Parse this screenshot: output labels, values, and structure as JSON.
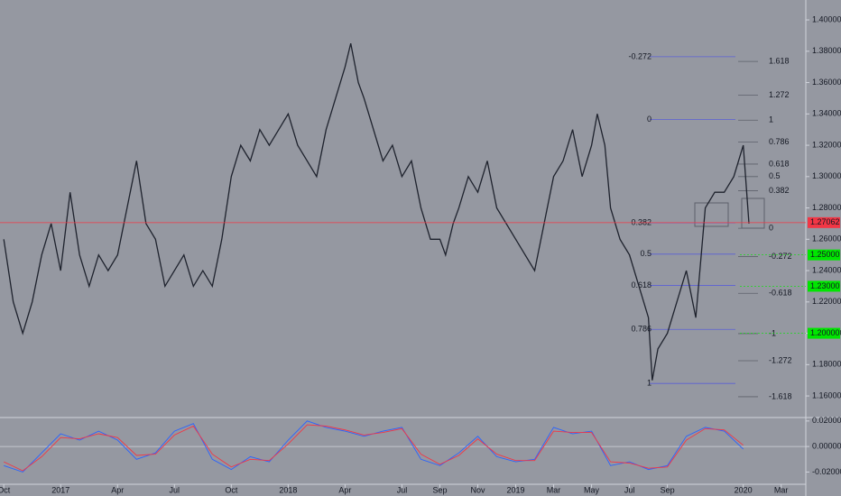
{
  "chart_data": [
    {
      "type": "line",
      "color": "#1e222d",
      "x": [
        0,
        0.5,
        1,
        1.5,
        2,
        2.5,
        3,
        3.5,
        4,
        4.5,
        5,
        5.5,
        6,
        6.5,
        7,
        7.5,
        8,
        8.5,
        9,
        9.5,
        10,
        10.5,
        11,
        11.5,
        12,
        12.5,
        13,
        13.5,
        14,
        14.5,
        15,
        15.5,
        16,
        16.5,
        17,
        17.5,
        18,
        18.3,
        18.7,
        19,
        19.5,
        20,
        20.5,
        21,
        21.5,
        22,
        22.5,
        23,
        23.3,
        23.7,
        24,
        24.5,
        25,
        25.5,
        26,
        26.5,
        27,
        27.5,
        28,
        28.5,
        29,
        29.5,
        30,
        30.5,
        31,
        31.3,
        31.7,
        32,
        32.5,
        33,
        33.5,
        34,
        34.2,
        34.5,
        35,
        35.5,
        36,
        36.5,
        37,
        37.5,
        38,
        38.5,
        39,
        39.3
      ],
      "values": [
        1.26,
        1.22,
        1.2,
        1.22,
        1.25,
        1.27,
        1.24,
        1.29,
        1.25,
        1.23,
        1.25,
        1.24,
        1.25,
        1.28,
        1.31,
        1.27,
        1.26,
        1.23,
        1.24,
        1.25,
        1.23,
        1.24,
        1.23,
        1.26,
        1.3,
        1.32,
        1.31,
        1.33,
        1.32,
        1.33,
        1.34,
        1.32,
        1.31,
        1.3,
        1.33,
        1.35,
        1.37,
        1.385,
        1.36,
        1.35,
        1.33,
        1.31,
        1.32,
        1.3,
        1.31,
        1.28,
        1.26,
        1.26,
        1.25,
        1.27,
        1.28,
        1.3,
        1.29,
        1.31,
        1.28,
        1.27,
        1.26,
        1.25,
        1.24,
        1.27,
        1.3,
        1.31,
        1.33,
        1.3,
        1.32,
        1.34,
        1.32,
        1.28,
        1.26,
        1.25,
        1.23,
        1.21,
        1.17,
        1.19,
        1.2,
        1.22,
        1.24,
        1.21,
        1.28,
        1.29,
        1.29,
        1.3,
        1.32,
        1.27
      ],
      "xlim": [
        -0.2,
        42.3
      ],
      "ylim": [
        1.1468,
        1.4127
      ],
      "yticks": [
        {
          "value": 1.16,
          "label": "1.16000"
        },
        {
          "value": 1.18,
          "label": "1.18000"
        },
        {
          "value": 1.2,
          "label": "1.20000"
        },
        {
          "value": 1.22,
          "label": "1.22000"
        },
        {
          "value": 1.24,
          "label": "1.24000"
        },
        {
          "value": 1.26,
          "label": "1.26000"
        },
        {
          "value": 1.28,
          "label": "1.28000"
        },
        {
          "value": 1.3,
          "label": "1.30000"
        },
        {
          "value": 1.32,
          "label": "1.32000"
        },
        {
          "value": 1.34,
          "label": "1.34000"
        },
        {
          "value": 1.36,
          "label": "1.36000"
        },
        {
          "value": 1.38,
          "label": "1.38000"
        },
        {
          "value": 1.4,
          "label": "1.40000"
        }
      ],
      "price_labels": [
        {
          "value": 1.27062,
          "label": "1.27062",
          "color": "#f23645"
        },
        {
          "value": 1.25,
          "label": "1.25000",
          "color": "#00e600"
        },
        {
          "value": 1.23,
          "label": "1.23000",
          "color": "#00e600"
        },
        {
          "value": 1.2,
          "label": "1.20000",
          "color": "#00e600"
        }
      ],
      "fib_left": [
        {
          "label": "-0.272",
          "value": 1.3765
        },
        {
          "label": "0",
          "value": 1.3365
        },
        {
          "label": "0.382",
          "value": 1.2705
        },
        {
          "label": "0.5",
          "value": 1.2505
        },
        {
          "label": "0.618",
          "value": 1.2305
        },
        {
          "label": "0.786",
          "value": 1.2025
        },
        {
          "label": "1",
          "value": 1.168
        }
      ],
      "fib_right": [
        {
          "label": "1.618",
          "value": 1.3735
        },
        {
          "label": "1.272",
          "value": 1.352
        },
        {
          "label": "1",
          "value": 1.336
        },
        {
          "label": "0.786",
          "value": 1.322
        },
        {
          "label": "0.618",
          "value": 1.308
        },
        {
          "label": "0.5",
          "value": 1.3
        },
        {
          "label": "0.382",
          "value": 1.291
        },
        {
          "label": "0",
          "value": 1.267
        },
        {
          "label": "-0.272",
          "value": 1.249
        },
        {
          "label": "-0.618",
          "value": 1.2255
        },
        {
          "label": "-1",
          "value": 1.1998
        },
        {
          "label": "-1.272",
          "value": 1.1825
        },
        {
          "label": "-1.618",
          "value": 1.1595
        }
      ]
    },
    {
      "type": "line",
      "x": [
        0,
        1,
        2,
        3,
        4,
        5,
        6,
        7,
        8,
        9,
        10,
        11,
        12,
        13,
        14,
        15,
        16,
        17,
        18,
        19,
        20,
        21,
        22,
        23,
        24,
        25,
        26,
        27,
        28,
        29,
        30,
        31,
        32,
        33,
        34,
        35,
        36,
        37,
        38,
        39
      ],
      "series": [
        {
          "color": "#2962ff",
          "values": [
            -0.015,
            -0.02,
            -0.005,
            0.01,
            0.005,
            0.012,
            0.005,
            -0.01,
            -0.005,
            0.012,
            0.018,
            -0.01,
            -0.018,
            -0.008,
            -0.012,
            0.005,
            0.02,
            0.015,
            0.012,
            0.008,
            0.012,
            0.015,
            -0.01,
            -0.015,
            -0.005,
            0.008,
            -0.008,
            -0.012,
            -0.01,
            0.015,
            0.01,
            0.012,
            -0.015,
            -0.012,
            -0.018,
            -0.015,
            0.008,
            0.015,
            0.012,
            -0.002
          ]
        },
        {
          "color": "#f23645",
          "values": [
            -0.012,
            -0.019,
            -0.008,
            0.007,
            0.006,
            0.01,
            0.007,
            -0.007,
            -0.006,
            0.009,
            0.016,
            -0.006,
            -0.016,
            -0.01,
            -0.011,
            0.002,
            0.017,
            0.016,
            0.013,
            0.009,
            0.011,
            0.014,
            -0.006,
            -0.014,
            -0.007,
            0.006,
            -0.006,
            -0.011,
            -0.011,
            0.012,
            0.011,
            0.011,
            -0.012,
            -0.013,
            -0.017,
            -0.016,
            0.005,
            0.014,
            0.013,
            0.001
          ]
        }
      ],
      "xlim": [
        -0.2,
        42.3
      ],
      "ylim": [
        -0.0296,
        0.0227
      ],
      "yticks": [
        {
          "value": 0.02,
          "label": "0.02000"
        },
        {
          "value": 0,
          "label": "0.00000"
        },
        {
          "value": -0.02,
          "label": "-0.02000"
        }
      ],
      "xticks": [
        {
          "value": 0,
          "label": "Oct"
        },
        {
          "value": 3,
          "label": "2017"
        },
        {
          "value": 6,
          "label": "Apr"
        },
        {
          "value": 9,
          "label": "Jul"
        },
        {
          "value": 12,
          "label": "Oct"
        },
        {
          "value": 15,
          "label": "2018"
        },
        {
          "value": 18,
          "label": "Apr"
        },
        {
          "value": 21,
          "label": "Jul"
        },
        {
          "value": 23,
          "label": "Sep"
        },
        {
          "value": 25,
          "label": "Nov"
        },
        {
          "value": 27,
          "label": "2019"
        },
        {
          "value": 29,
          "label": "Mar"
        },
        {
          "value": 31,
          "label": "May"
        },
        {
          "value": 33,
          "label": "Jul"
        },
        {
          "value": 35,
          "label": "Sep"
        },
        {
          "value": 39,
          "label": "2020"
        },
        {
          "value": 41,
          "label": "Mar"
        }
      ]
    }
  ]
}
